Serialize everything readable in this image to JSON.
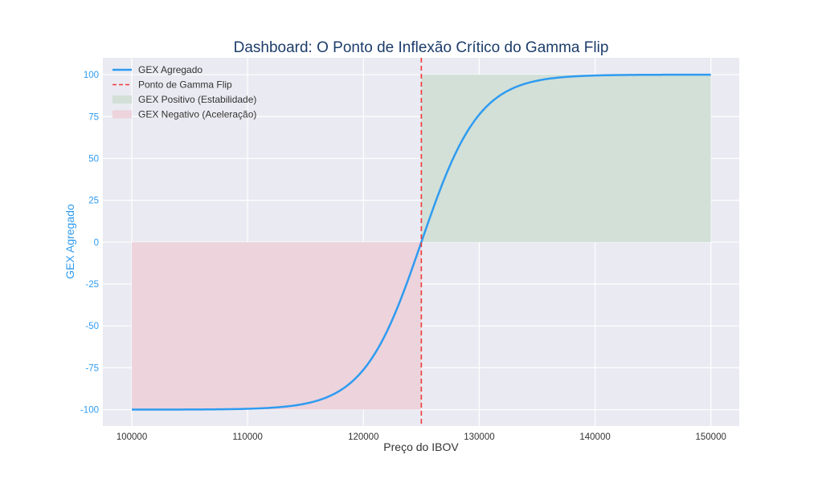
{
  "chart_data": {
    "type": "line",
    "title": "Dashboard: O Ponto de Inflexão Crítico do Gamma Flip",
    "xlabel": "Preço do IBOV",
    "ylabel": "GEX Agregado",
    "xlim": [
      97500,
      152450
    ],
    "ylim": [
      -109.8,
      110.1
    ],
    "xticks": [
      100000,
      110000,
      120000,
      130000,
      140000,
      150000
    ],
    "xtick_labels": [
      "100000",
      "110000",
      "120000",
      "130000",
      "140000",
      "150000"
    ],
    "yticks": [
      100,
      75,
      50,
      25,
      0,
      -25,
      -50,
      -75,
      -100
    ],
    "ytick_labels": [
      "100",
      "75",
      "50",
      "25",
      "0",
      "-25",
      "-50",
      "-75",
      "-100"
    ],
    "grid": true,
    "legend_position": "top-left",
    "series": [
      {
        "name": "GEX Agregado",
        "kind": "line",
        "formula": "100*tanh((x-125000)/5000)",
        "x_range": [
          100000,
          150000
        ],
        "color": "#2f9bf0"
      },
      {
        "name": "Ponto de Gamma Flip",
        "kind": "vline",
        "x": 125000,
        "color": "#f03a3a"
      },
      {
        "name": "GEX Positivo (Estabilidade)",
        "kind": "fill",
        "x_range": [
          125000,
          150000
        ],
        "y_range": [
          0,
          100
        ],
        "color": "#d2e0d8"
      },
      {
        "name": "GEX Negativo (Aceleração)",
        "kind": "fill",
        "x_range": [
          100000,
          125000
        ],
        "y_range": [
          -100,
          0
        ],
        "color": "#ecd3dc"
      }
    ],
    "colors": {
      "background": "#eaeaf2",
      "grid": "#ffffff",
      "title": "#1d3d6b",
      "yaxis": "#2f9bf0"
    }
  }
}
